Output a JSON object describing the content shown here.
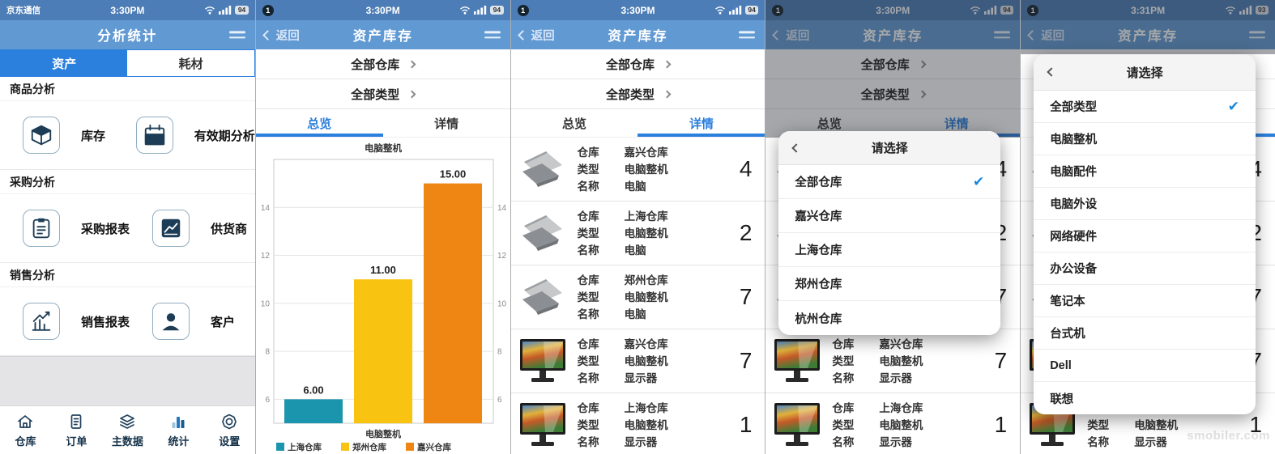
{
  "status_bars": {
    "s1": {
      "carrier": "京东通信",
      "time": "3:30PM",
      "battery": "94"
    },
    "s2": {
      "badge": "1",
      "time": "3:30PM",
      "battery": "94"
    },
    "s3": {
      "badge": "1",
      "time": "3:30PM",
      "battery": "94"
    },
    "s4": {
      "badge": "1",
      "time": "3:30PM",
      "battery": "94"
    },
    "s5": {
      "badge": "1",
      "time": "3:31PM",
      "battery": "93"
    }
  },
  "screen1": {
    "title": "分析统计",
    "tabs": [
      {
        "label": "资产"
      },
      {
        "label": "耗材"
      }
    ],
    "sections": [
      {
        "header": "商品分析",
        "items": [
          {
            "label": "库存"
          },
          {
            "label": "有效期分析"
          }
        ]
      },
      {
        "header": "采购分析",
        "items": [
          {
            "label": "采购报表"
          },
          {
            "label": "供货商"
          }
        ]
      },
      {
        "header": "销售分析",
        "items": [
          {
            "label": "销售报表"
          },
          {
            "label": "客户"
          }
        ]
      }
    ],
    "bottom_nav": [
      {
        "label": "仓库"
      },
      {
        "label": "订单"
      },
      {
        "label": "主数据"
      },
      {
        "label": "统计"
      },
      {
        "label": "设置"
      }
    ]
  },
  "asset_header": {
    "back": "返回",
    "title": "资产库存",
    "filters": [
      {
        "label": "全部仓库"
      },
      {
        "label": "全部类型"
      }
    ],
    "tabs": {
      "overview": "总览",
      "detail": "详情"
    }
  },
  "row_labels": {
    "warehouse": "仓库",
    "type": "类型",
    "name": "名称"
  },
  "inventory_rows": [
    {
      "kind": "laptop",
      "warehouse": "嘉兴仓库",
      "type": "电脑整机",
      "name": "电脑",
      "count": "4"
    },
    {
      "kind": "laptop",
      "warehouse": "上海仓库",
      "type": "电脑整机",
      "name": "电脑",
      "count": "2"
    },
    {
      "kind": "laptop",
      "warehouse": "郑州仓库",
      "type": "电脑整机",
      "name": "电脑",
      "count": "7"
    },
    {
      "kind": "monitor",
      "warehouse": "嘉兴仓库",
      "type": "电脑整机",
      "name": "显示器",
      "count": "7"
    },
    {
      "kind": "monitor",
      "warehouse": "上海仓库",
      "type": "电脑整机",
      "name": "显示器",
      "count": "1"
    }
  ],
  "warehouse_picker": {
    "title": "请选择",
    "options": [
      {
        "label": "全部仓库",
        "checked": true
      },
      {
        "label": "嘉兴仓库",
        "checked": false
      },
      {
        "label": "上海仓库",
        "checked": false
      },
      {
        "label": "郑州仓库",
        "checked": false
      },
      {
        "label": "杭州仓库",
        "checked": false
      }
    ]
  },
  "type_picker": {
    "title": "请选择",
    "options": [
      {
        "label": "全部类型",
        "checked": true
      },
      {
        "label": "电脑整机",
        "checked": false
      },
      {
        "label": "电脑配件",
        "checked": false
      },
      {
        "label": "电脑外设",
        "checked": false
      },
      {
        "label": "网络硬件",
        "checked": false
      },
      {
        "label": "办公设备",
        "checked": false
      },
      {
        "label": "笔记本",
        "checked": false
      },
      {
        "label": "台式机",
        "checked": false
      },
      {
        "label": "Dell",
        "checked": false
      },
      {
        "label": "联想",
        "checked": false
      }
    ]
  },
  "chart_data": {
    "type": "bar",
    "title": "电脑整机",
    "xlabel": "电脑整机",
    "categories": [
      "上海仓库",
      "郑州仓库",
      "嘉兴仓库"
    ],
    "values": [
      6,
      11,
      15
    ],
    "value_labels": [
      "6.00",
      "11.00",
      "15.00"
    ],
    "colors": [
      "#1b94ad",
      "#f8c411",
      "#ef8512"
    ],
    "ylim": [
      5,
      16
    ],
    "yticks": [
      6,
      8,
      10,
      12,
      14
    ],
    "grid": true,
    "legend_position": "bottom"
  },
  "watermark": "smobiler.com",
  "colors": {
    "accent": "#2b7fdd",
    "check": "#1887dc",
    "status_bar": "#4d7db6",
    "nav_bar": "#6199d3"
  }
}
